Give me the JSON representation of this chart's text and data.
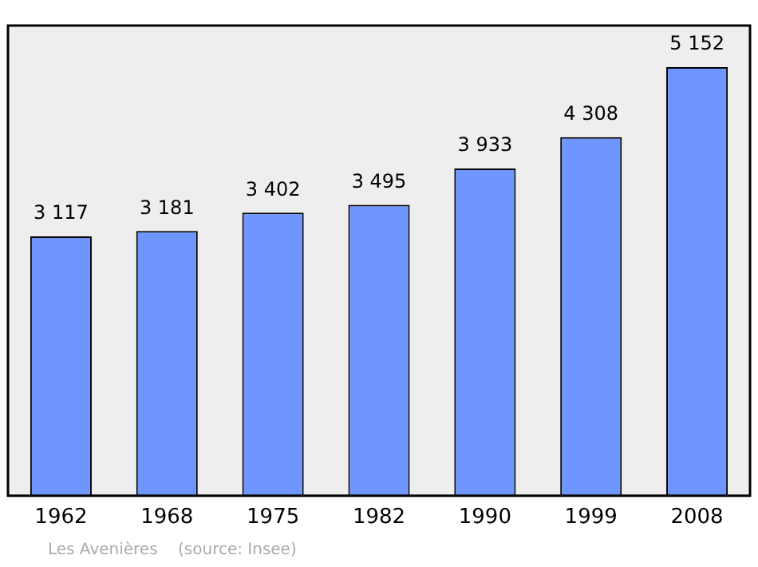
{
  "chart_data": {
    "type": "bar",
    "categories": [
      "1962",
      "1968",
      "1975",
      "1982",
      "1990",
      "1999",
      "2008"
    ],
    "values": [
      3117,
      3181,
      3402,
      3495,
      3933,
      4308,
      5152
    ],
    "value_labels": [
      "3 117",
      "3 181",
      "3 402",
      "3 495",
      "3 933",
      "4 308",
      "5 152"
    ],
    "color": "#6f96ff",
    "ylim": [
      0,
      5650
    ],
    "tick_labels": "x",
    "grid": false,
    "legend": false,
    "annotations": [
      "Les Avenières    (source: Insee)"
    ]
  }
}
